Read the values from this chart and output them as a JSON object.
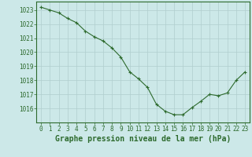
{
  "x": [
    0,
    1,
    2,
    3,
    4,
    5,
    6,
    7,
    8,
    9,
    10,
    11,
    12,
    13,
    14,
    15,
    16,
    17,
    18,
    19,
    20,
    21,
    22,
    23
  ],
  "y": [
    1023.2,
    1023.0,
    1022.8,
    1022.4,
    1022.1,
    1021.5,
    1021.1,
    1020.8,
    1020.3,
    1019.65,
    1018.6,
    1018.1,
    1017.5,
    1016.3,
    1015.8,
    1015.55,
    1015.55,
    1016.05,
    1016.5,
    1017.0,
    1016.9,
    1017.1,
    1018.0,
    1018.6
  ],
  "line_color": "#2d6a2d",
  "marker": "+",
  "bg_color": "#cce8e8",
  "grid_color": "#b0cece",
  "xlabel": "Graphe pression niveau de la mer (hPa)",
  "xlabel_fontsize": 7,
  "tick_fontsize": 5.5,
  "ylim": [
    1015.0,
    1023.6
  ],
  "xlim": [
    -0.5,
    23.5
  ],
  "yticks": [
    1016,
    1017,
    1018,
    1019,
    1020,
    1021,
    1022,
    1023
  ],
  "xticks": [
    0,
    1,
    2,
    3,
    4,
    5,
    6,
    7,
    8,
    9,
    10,
    11,
    12,
    13,
    14,
    15,
    16,
    17,
    18,
    19,
    20,
    21,
    22,
    23
  ]
}
